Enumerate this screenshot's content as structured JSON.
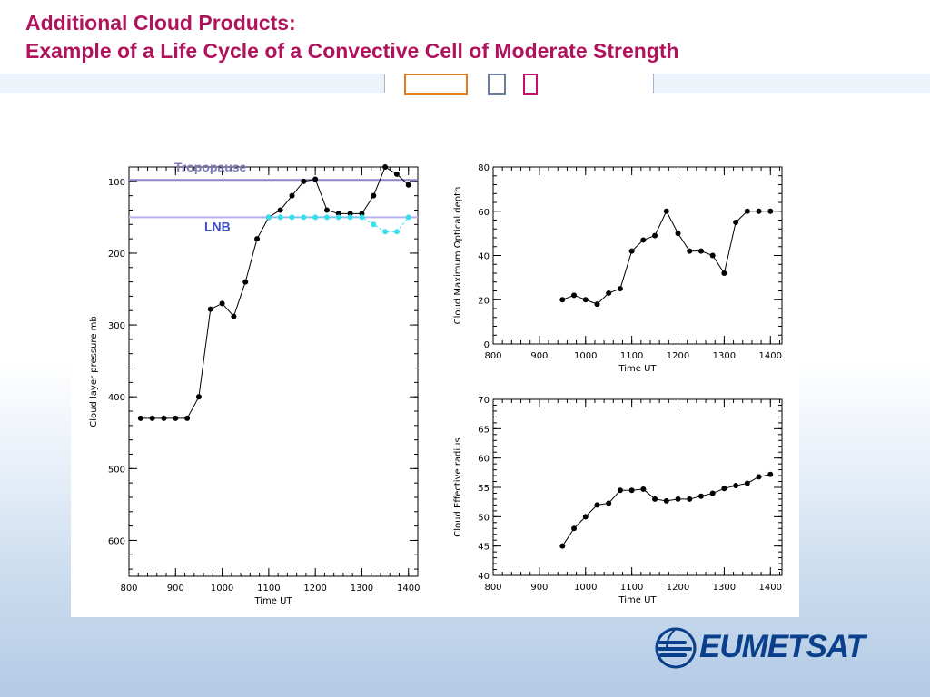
{
  "slide": {
    "title_line1": "Additional Cloud Products:",
    "title_line2": "Example of a Life Cycle of a Convective Cell of Moderate Strength",
    "title_color": "#b0135c",
    "logo_text": "EUMETSAT",
    "logo_color": "#0a3f8c",
    "nav_colors": [
      "#e07b1e",
      "#6a7ea2",
      "#c4116a"
    ]
  },
  "chart_data": [
    {
      "type": "line",
      "xlabel": "Time UT",
      "ylabel": "Cloud layer pressure mb",
      "xlim": [
        800,
        1420
      ],
      "ylim": [
        650,
        80
      ],
      "y_inverted": true,
      "xticks": [
        800,
        900,
        1000,
        1100,
        1200,
        1300,
        1400
      ],
      "yticks": [
        100,
        200,
        300,
        400,
        500,
        600
      ],
      "reference_lines": [
        {
          "label": "Tropopause",
          "y": 98,
          "color": "#8e86c8"
        },
        {
          "label": "LNB",
          "y": 150,
          "color": "#b7b3ec"
        }
      ],
      "series": [
        {
          "color": "#000000",
          "x": [
            825,
            850,
            875,
            900,
            925,
            950,
            975,
            1000,
            1025,
            1050,
            1075,
            1100,
            1125,
            1150,
            1175,
            1200,
            1225,
            1250,
            1275,
            1300,
            1325,
            1350,
            1375,
            1400
          ],
          "y": [
            430,
            430,
            430,
            430,
            430,
            400,
            278,
            270,
            288,
            240,
            180,
            150,
            140,
            120,
            100,
            97,
            140,
            145,
            145,
            145,
            120,
            80,
            90,
            105
          ]
        },
        {
          "color": "#34e0ee",
          "x": [
            1100,
            1125,
            1150,
            1175,
            1200,
            1225,
            1250,
            1275,
            1300,
            1325,
            1350,
            1375,
            1400
          ],
          "y": [
            150,
            150,
            150,
            150,
            150,
            150,
            150,
            150,
            150,
            160,
            170,
            170,
            150
          ]
        }
      ]
    },
    {
      "type": "line",
      "xlabel": "Time UT",
      "ylabel": "Cloud Maximum Optical depth",
      "xlim": [
        800,
        1425
      ],
      "ylim": [
        0,
        80
      ],
      "xticks": [
        800,
        900,
        1000,
        1100,
        1200,
        1300,
        1400
      ],
      "yticks": [
        0,
        20,
        40,
        60,
        80
      ],
      "series": [
        {
          "color": "#000000",
          "x": [
            950,
            975,
            1000,
            1025,
            1050,
            1075,
            1100,
            1125,
            1150,
            1175,
            1200,
            1225,
            1250,
            1275,
            1300,
            1325,
            1350,
            1375,
            1400
          ],
          "y": [
            20,
            22,
            20,
            18,
            23,
            25,
            42,
            47,
            49,
            60,
            50,
            42,
            42,
            40,
            32,
            55,
            60,
            60,
            60
          ]
        }
      ]
    },
    {
      "type": "line",
      "xlabel": "Time UT",
      "ylabel": "Cloud Effective radius",
      "xlim": [
        800,
        1425
      ],
      "ylim": [
        40,
        70
      ],
      "xticks": [
        800,
        900,
        1000,
        1100,
        1200,
        1300,
        1400
      ],
      "yticks": [
        40,
        45,
        50,
        55,
        60,
        65,
        70
      ],
      "series": [
        {
          "color": "#000000",
          "x": [
            950,
            975,
            1000,
            1025,
            1050,
            1075,
            1100,
            1125,
            1150,
            1175,
            1200,
            1225,
            1250,
            1275,
            1300,
            1325,
            1350,
            1375,
            1400
          ],
          "y": [
            45,
            48,
            50,
            52,
            52.3,
            54.5,
            54.5,
            54.7,
            53,
            52.7,
            53,
            53,
            53.5,
            54,
            54.8,
            55.3,
            55.7,
            56.8,
            57.2
          ]
        }
      ]
    }
  ]
}
